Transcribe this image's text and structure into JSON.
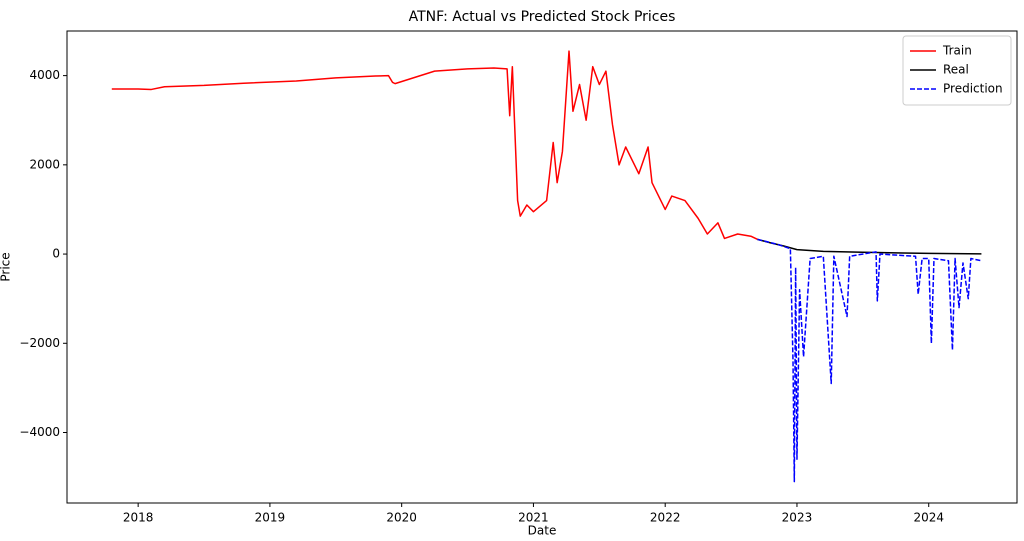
{
  "chart_data": {
    "type": "line",
    "title": "ATNF: Actual vs Predicted Stock Prices",
    "x_label": "Date",
    "y_label": "Price",
    "xlim": [
      2017.46,
      2024.67
    ],
    "xticks": [
      2018,
      2019,
      2020,
      2021,
      2022,
      2023,
      2024
    ],
    "ylim": [
      -5580,
      5000
    ],
    "yticks": [
      {
        "value": -4000,
        "label": "−4000"
      },
      {
        "value": -2000,
        "label": "−2000"
      },
      0,
      2000,
      4000
    ],
    "legend": "upper right",
    "series": [
      {
        "name": "Train",
        "color": "#ff0000",
        "linestyle": "solid",
        "x": [
          2017.8,
          2018.0,
          2018.1,
          2018.2,
          2018.5,
          2018.8,
          2019.2,
          2019.5,
          2019.8,
          2019.9,
          2019.93,
          2019.95,
          2020.25,
          2020.5,
          2020.7,
          2020.8,
          2020.82,
          2020.84,
          2020.88,
          2020.9,
          2020.95,
          2021.0,
          2021.1,
          2021.15,
          2021.18,
          2021.22,
          2021.27,
          2021.3,
          2021.35,
          2021.4,
          2021.45,
          2021.5,
          2021.55,
          2021.6,
          2021.65,
          2021.7,
          2021.8,
          2021.87,
          2021.9,
          2022.0,
          2022.05,
          2022.15,
          2022.25,
          2022.32,
          2022.4,
          2022.45,
          2022.55,
          2022.65,
          2022.7
        ],
        "values": [
          3700,
          3700,
          3690,
          3750,
          3780,
          3830,
          3880,
          3950,
          3990,
          4000,
          3850,
          3820,
          4100,
          4150,
          4170,
          4150,
          3100,
          4200,
          1200,
          850,
          1100,
          950,
          1200,
          2500,
          1600,
          2300,
          4550,
          3200,
          3800,
          3000,
          4200,
          3800,
          4100,
          2900,
          2000,
          2400,
          1800,
          2400,
          1600,
          1000,
          1300,
          1200,
          800,
          450,
          700,
          350,
          450,
          400,
          330
        ]
      },
      {
        "name": "Real",
        "color": "#000000",
        "linestyle": "solid",
        "x": [
          2022.7,
          2022.8,
          2022.9,
          2023.0,
          2023.2,
          2023.5,
          2023.8,
          2024.0,
          2024.2,
          2024.4
        ],
        "values": [
          330,
          250,
          180,
          100,
          60,
          40,
          25,
          15,
          10,
          5
        ]
      },
      {
        "name": "Prediction",
        "color": "#0000ff",
        "linestyle": "dashed",
        "x": [
          2022.7,
          2022.85,
          2022.95,
          2022.97,
          2022.98,
          2022.99,
          2023.0,
          2023.02,
          2023.05,
          2023.1,
          2023.2,
          2023.26,
          2023.28,
          2023.38,
          2023.4,
          2023.6,
          2023.61,
          2023.63,
          2023.9,
          2023.92,
          2023.95,
          2024.0,
          2024.02,
          2024.04,
          2024.15,
          2024.18,
          2024.2,
          2024.23,
          2024.26,
          2024.3,
          2024.32,
          2024.4
        ],
        "values": [
          330,
          220,
          120,
          -2400,
          -5100,
          -300,
          -4600,
          -800,
          -2300,
          -100,
          -50,
          -2900,
          -50,
          -1400,
          -50,
          50,
          -1050,
          0,
          -50,
          -900,
          -100,
          -100,
          -2000,
          -100,
          -150,
          -2150,
          -100,
          -1200,
          -200,
          -1000,
          -100,
          -150
        ]
      }
    ]
  }
}
